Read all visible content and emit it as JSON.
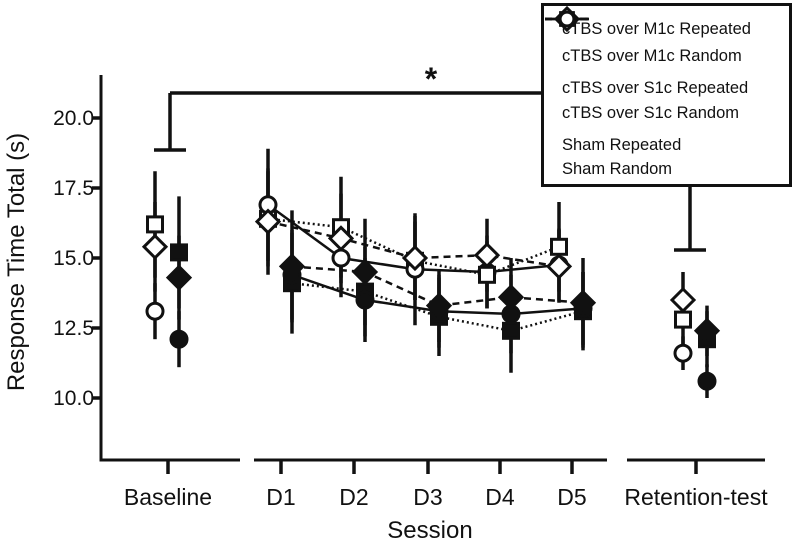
{
  "colors": {
    "foreground": "#111111",
    "background": "#ffffff"
  },
  "annotation": {
    "significance_symbol": "*",
    "from": "Baseline",
    "to": "Retention-test"
  },
  "legend": {
    "position": "top-right"
  },
  "chart_data": {
    "type": "line",
    "title": "",
    "xlabel": "Session",
    "ylabel": "Response Time Total (s)",
    "ylim": [
      8.8,
      21.6
    ],
    "y_ticks": [
      "20.0",
      "17.5",
      "15.0",
      "12.5",
      "10.0"
    ],
    "y_tick_values": [
      20.0,
      17.5,
      15.0,
      12.5,
      10.0
    ],
    "categories": [
      "Baseline",
      "D1",
      "D2",
      "D3",
      "D4",
      "D5",
      "Retention-test"
    ],
    "connected_categories": [
      "D1",
      "D2",
      "D3",
      "D4",
      "D5"
    ],
    "grid": false,
    "series": [
      {
        "name": "cTBS over M1c Repeated",
        "marker": "diamond",
        "fill": "filled",
        "line": "dashed",
        "values": [
          14.3,
          14.7,
          14.5,
          13.3,
          13.6,
          13.4,
          12.4
        ],
        "errors": [
          1.5,
          2.0,
          1.9,
          1.3,
          1.4,
          1.6,
          0.9
        ]
      },
      {
        "name": "cTBS over M1c Random",
        "marker": "diamond",
        "fill": "open",
        "line": "dashed",
        "values": [
          15.4,
          16.3,
          15.7,
          15.0,
          15.1,
          14.7,
          13.5
        ],
        "errors": [
          1.6,
          1.9,
          1.6,
          1.5,
          1.3,
          1.3,
          1.0
        ]
      },
      {
        "name": "cTBS over S1c Repeated",
        "marker": "square",
        "fill": "filled",
        "line": "dotted",
        "values": [
          15.2,
          14.1,
          13.8,
          12.9,
          12.4,
          13.1,
          12.1
        ],
        "errors": [
          2.0,
          1.8,
          1.6,
          1.4,
          1.5,
          1.4,
          1.0
        ]
      },
      {
        "name": "cTBS over S1c Random",
        "marker": "square",
        "fill": "open",
        "line": "dotted",
        "values": [
          16.2,
          16.4,
          16.1,
          14.9,
          14.4,
          15.4,
          12.8
        ],
        "errors": [
          1.9,
          1.7,
          1.8,
          1.4,
          1.2,
          1.6,
          1.0
        ]
      },
      {
        "name": "Sham Repeated",
        "marker": "circle",
        "fill": "filled",
        "line": "solid",
        "values": [
          12.1,
          14.4,
          13.5,
          13.1,
          13.0,
          13.2,
          10.6
        ],
        "errors": [
          1.0,
          1.6,
          1.5,
          1.3,
          1.4,
          1.3,
          0.6
        ]
      },
      {
        "name": "Sham Random",
        "marker": "circle",
        "fill": "open",
        "line": "solid",
        "values": [
          13.1,
          16.9,
          15.0,
          14.6,
          14.5,
          14.75,
          11.6
        ],
        "errors": [
          1.0,
          2.0,
          1.4,
          2.0,
          1.3,
          1.3,
          0.6
        ]
      }
    ]
  }
}
